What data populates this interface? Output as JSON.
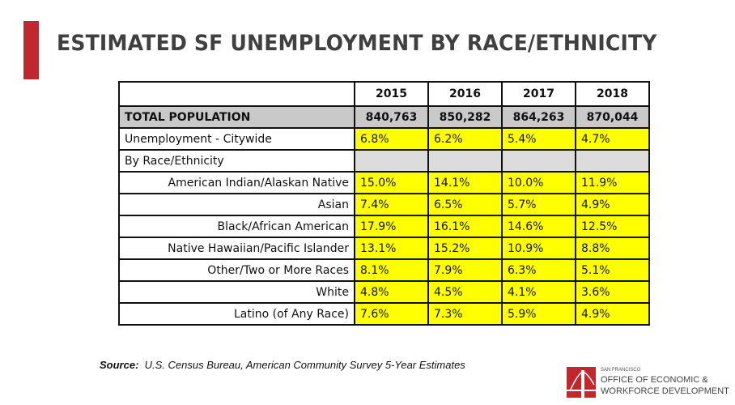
{
  "title": "ESTIMATED SF UNEMPLOYMENT BY RACE/ETHNICITY",
  "table": {
    "years": [
      "2015",
      "2016",
      "2017",
      "2018"
    ],
    "total_population": {
      "label": "TOTAL POPULATION",
      "values": [
        "840,763",
        "850,282",
        "864,263",
        "870,044"
      ]
    },
    "citywide": {
      "label": "Unemployment - Citywide",
      "values": [
        "6.8%",
        "6.2%",
        "5.4%",
        "4.7%"
      ]
    },
    "section_label": "By Race/Ethnicity",
    "rows": [
      {
        "label": "American Indian/Alaskan Native",
        "values": [
          "15.0%",
          "14.1%",
          "10.0%",
          "11.9%"
        ]
      },
      {
        "label": "Asian",
        "values": [
          "7.4%",
          "6.5%",
          "5.7%",
          "4.9%"
        ]
      },
      {
        "label": "Black/African American",
        "values": [
          "17.9%",
          "16.1%",
          "14.6%",
          "12.5%"
        ]
      },
      {
        "label": "Native Hawaiian/Pacific Islander",
        "values": [
          "13.1%",
          "15.2%",
          "10.9%",
          "8.8%"
        ]
      },
      {
        "label": "Other/Two or More Races",
        "values": [
          "8.1%",
          "7.9%",
          "6.3%",
          "5.1%"
        ]
      },
      {
        "label": "White",
        "values": [
          "4.8%",
          "4.5%",
          "4.1%",
          "3.6%"
        ]
      },
      {
        "label": "Latino (of Any Race)",
        "values": [
          "7.6%",
          "7.3%",
          "5.9%",
          "4.9%"
        ]
      }
    ]
  },
  "source": {
    "label": "Source:",
    "text": "U.S. Census Bureau, American Community Survey 5-Year Estimates"
  },
  "logo": {
    "small": "SAN FRANCISCO",
    "line1": "OFFICE OF ECONOMIC &",
    "line2": "WORKFORCE DEVELOPMENT"
  },
  "colors": {
    "accent": "#c1272d",
    "highlight": "#ffff00",
    "header_gray": "#c9c9c9",
    "blank_gray": "#dcdcdc"
  }
}
